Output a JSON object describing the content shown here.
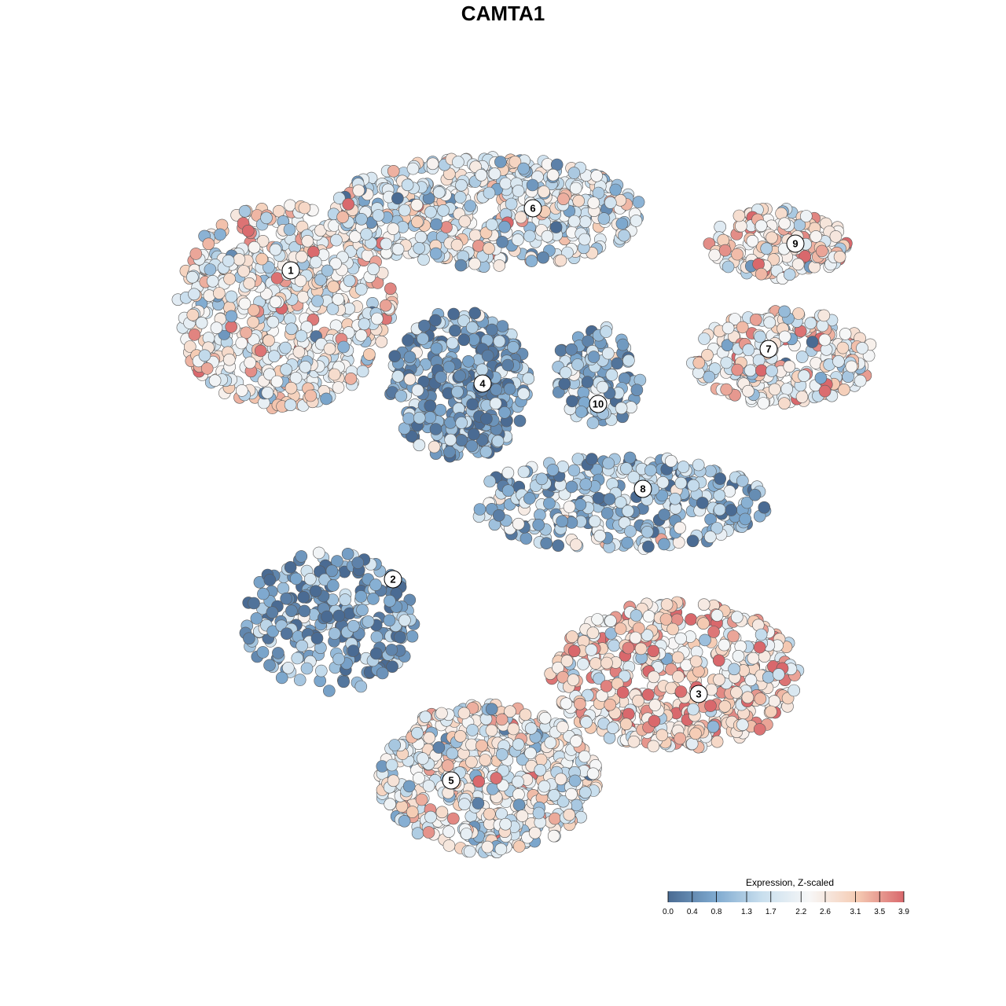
{
  "chart_data": {
    "type": "scatter",
    "title": "CAMTA1",
    "xlabel": "",
    "ylabel": "",
    "grid": false,
    "legend_position": "bottom-right",
    "colorbar": {
      "title": "Expression, Z-scaled",
      "ticks": [
        "0.0",
        "0.4",
        "0.8",
        "1.3",
        "1.7",
        "2.2",
        "2.6",
        "3.1",
        "3.5",
        "3.9"
      ],
      "min": 0.0,
      "max": 3.9,
      "colors": [
        "#4a6b93",
        "#7ea9cf",
        "#c9dfee",
        "#f7f7f7",
        "#f5ccb4",
        "#d9686c"
      ]
    },
    "clusters": [
      {
        "label": "1",
        "mean_expression": 2.3
      },
      {
        "label": "2",
        "mean_expression": 0.6
      },
      {
        "label": "3",
        "mean_expression": 2.8
      },
      {
        "label": "4",
        "mean_expression": 0.7
      },
      {
        "label": "5",
        "mean_expression": 2.2
      },
      {
        "label": "6",
        "mean_expression": 1.9
      },
      {
        "label": "7",
        "mean_expression": 2.3
      },
      {
        "label": "8",
        "mean_expression": 1.2
      },
      {
        "label": "9",
        "mean_expression": 2.6
      },
      {
        "label": "10",
        "mean_expression": 0.9
      }
    ]
  }
}
